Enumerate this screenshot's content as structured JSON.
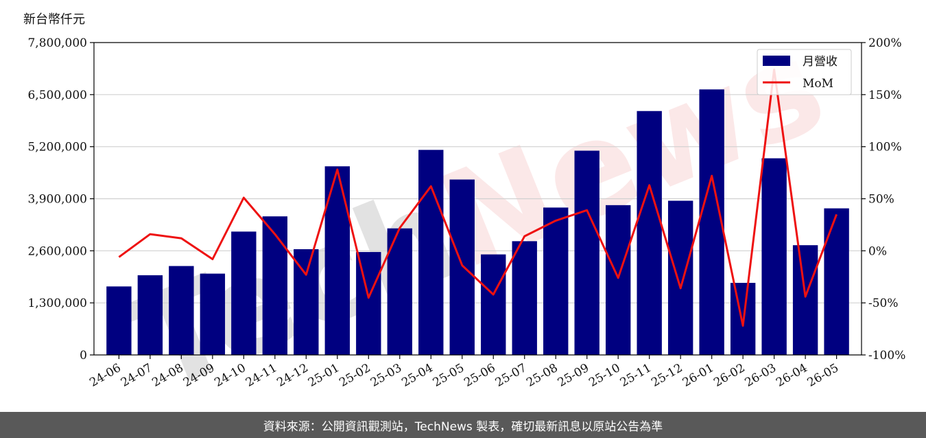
{
  "unit_label": "新台幣仟元",
  "footer_text": "資料來源：公開資訊觀測站，TechNews 製表，確切最新訊息以原站公告為準",
  "watermark": "TechNews",
  "colors": {
    "bar": "#000080",
    "line": "#ee1111",
    "grid": "#d0d0d0",
    "footer_bg": "#595959",
    "watermark_dark": "#9a9a9a",
    "watermark_red": "#f2b0b0"
  },
  "chart_data": {
    "type": "bar",
    "categories": [
      "24-06",
      "24-07",
      "24-08",
      "24-09",
      "24-10",
      "24-11",
      "24-12",
      "25-01",
      "25-02",
      "25-03",
      "25-04",
      "25-05",
      "25-06",
      "25-07",
      "25-08",
      "25-09",
      "25-10",
      "25-11",
      "25-12",
      "26-01",
      "26-02",
      "26-03",
      "26-04",
      "26-05"
    ],
    "series": [
      {
        "name": "月營收",
        "axis": "left",
        "type": "bar",
        "values": [
          1710000,
          1990000,
          2220000,
          2030000,
          3080000,
          3460000,
          2640000,
          4710000,
          2570000,
          3160000,
          5120000,
          4380000,
          2510000,
          2840000,
          3680000,
          5100000,
          3740000,
          6090000,
          3850000,
          6630000,
          1800000,
          4910000,
          2740000,
          3660000
        ]
      },
      {
        "name": "MoM",
        "axis": "right",
        "type": "line",
        "values": [
          -6,
          16,
          12,
          -8,
          51,
          16,
          -23,
          78,
          -45,
          22,
          62,
          -14,
          -42,
          14,
          29,
          39,
          -26,
          63,
          -36,
          72,
          -72,
          174,
          -44,
          35
        ]
      }
    ],
    "yleft": {
      "lim": [
        0,
        7800000
      ],
      "ticks": [
        0,
        1300000,
        2600000,
        3900000,
        5200000,
        6500000,
        7800000
      ],
      "tick_labels": [
        "0",
        "1,300,000",
        "2,600,000",
        "3,900,000",
        "5,200,000",
        "6,500,000",
        "7,800,000"
      ]
    },
    "yright": {
      "lim": [
        -100,
        200
      ],
      "ticks": [
        -100,
        -50,
        0,
        50,
        100,
        150,
        200
      ],
      "tick_labels": [
        "-100%",
        "-50%",
        "0%",
        "50%",
        "100%",
        "150%",
        "200%"
      ]
    },
    "grid": "horizontal",
    "legend_position": "top-right"
  }
}
